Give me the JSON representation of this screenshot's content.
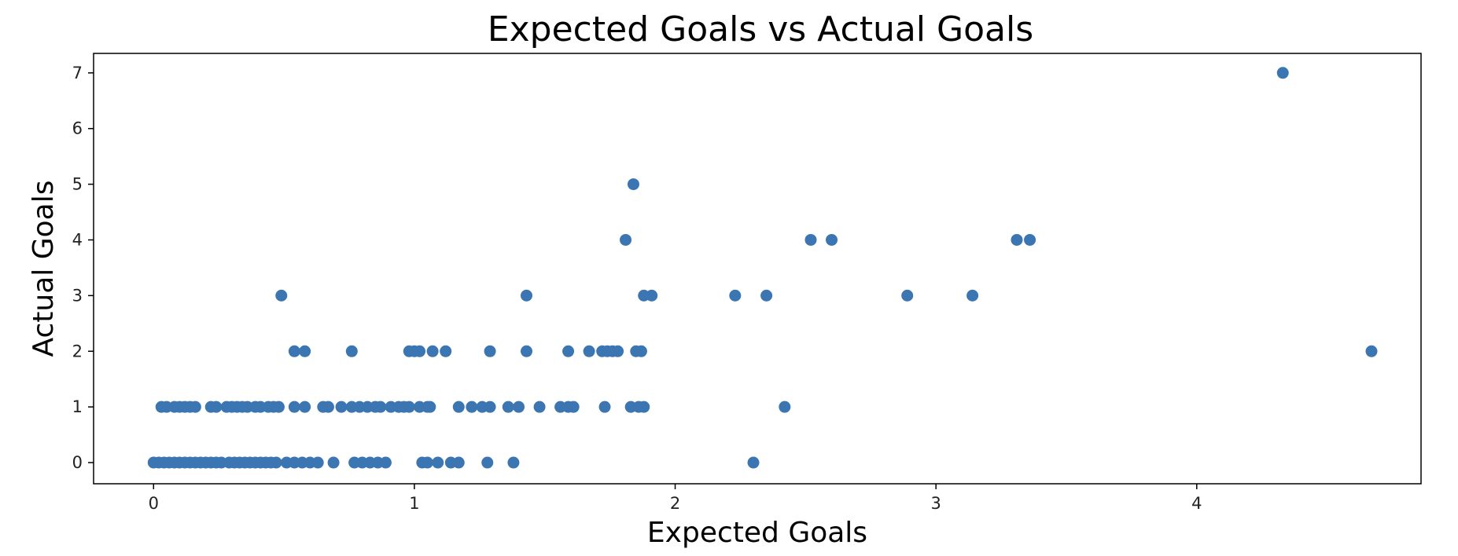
{
  "chart_data": {
    "type": "scatter",
    "title": "Expected Goals vs Actual Goals",
    "xlabel": "Expected Goals",
    "ylabel": "Actual Goals",
    "xlim": [
      -0.23,
      4.86
    ],
    "ylim": [
      -0.38,
      7.35
    ],
    "xticks": [
      0,
      1,
      2,
      3,
      4
    ],
    "yticks": [
      0,
      1,
      2,
      3,
      4,
      5,
      6,
      7
    ],
    "grid": false,
    "marker_color": "#3b76b3",
    "points": [
      [
        4.33,
        7
      ],
      [
        1.84,
        5
      ],
      [
        1.81,
        4
      ],
      [
        2.52,
        4
      ],
      [
        2.6,
        4
      ],
      [
        3.31,
        4
      ],
      [
        3.36,
        4
      ],
      [
        0.49,
        3
      ],
      [
        1.43,
        3
      ],
      [
        1.88,
        3
      ],
      [
        1.91,
        3
      ],
      [
        2.23,
        3
      ],
      [
        2.35,
        3
      ],
      [
        2.89,
        3
      ],
      [
        3.14,
        3
      ],
      [
        0.54,
        2
      ],
      [
        0.58,
        2
      ],
      [
        0.76,
        2
      ],
      [
        0.98,
        2
      ],
      [
        1.0,
        2
      ],
      [
        1.02,
        2
      ],
      [
        1.07,
        2
      ],
      [
        1.12,
        2
      ],
      [
        1.29,
        2
      ],
      [
        1.43,
        2
      ],
      [
        1.59,
        2
      ],
      [
        1.67,
        2
      ],
      [
        1.72,
        2
      ],
      [
        1.74,
        2
      ],
      [
        1.76,
        2
      ],
      [
        1.78,
        2
      ],
      [
        1.85,
        2
      ],
      [
        1.87,
        2
      ],
      [
        4.67,
        2
      ],
      [
        0.03,
        1
      ],
      [
        0.05,
        1
      ],
      [
        0.08,
        1
      ],
      [
        0.1,
        1
      ],
      [
        0.12,
        1
      ],
      [
        0.14,
        1
      ],
      [
        0.16,
        1
      ],
      [
        0.22,
        1
      ],
      [
        0.24,
        1
      ],
      [
        0.28,
        1
      ],
      [
        0.3,
        1
      ],
      [
        0.32,
        1
      ],
      [
        0.34,
        1
      ],
      [
        0.36,
        1
      ],
      [
        0.39,
        1
      ],
      [
        0.41,
        1
      ],
      [
        0.44,
        1
      ],
      [
        0.46,
        1
      ],
      [
        0.48,
        1
      ],
      [
        0.54,
        1
      ],
      [
        0.58,
        1
      ],
      [
        0.65,
        1
      ],
      [
        0.67,
        1
      ],
      [
        0.72,
        1
      ],
      [
        0.76,
        1
      ],
      [
        0.79,
        1
      ],
      [
        0.82,
        1
      ],
      [
        0.85,
        1
      ],
      [
        0.87,
        1
      ],
      [
        0.91,
        1
      ],
      [
        0.94,
        1
      ],
      [
        0.96,
        1
      ],
      [
        0.98,
        1
      ],
      [
        1.02,
        1
      ],
      [
        1.05,
        1
      ],
      [
        1.06,
        1
      ],
      [
        1.17,
        1
      ],
      [
        1.22,
        1
      ],
      [
        1.26,
        1
      ],
      [
        1.29,
        1
      ],
      [
        1.36,
        1
      ],
      [
        1.4,
        1
      ],
      [
        1.48,
        1
      ],
      [
        1.56,
        1
      ],
      [
        1.59,
        1
      ],
      [
        1.61,
        1
      ],
      [
        1.73,
        1
      ],
      [
        1.83,
        1
      ],
      [
        1.86,
        1
      ],
      [
        1.88,
        1
      ],
      [
        2.42,
        1
      ],
      [
        0.0,
        0
      ],
      [
        0.02,
        0
      ],
      [
        0.04,
        0
      ],
      [
        0.06,
        0
      ],
      [
        0.08,
        0
      ],
      [
        0.1,
        0
      ],
      [
        0.12,
        0
      ],
      [
        0.14,
        0
      ],
      [
        0.16,
        0
      ],
      [
        0.18,
        0
      ],
      [
        0.2,
        0
      ],
      [
        0.22,
        0
      ],
      [
        0.24,
        0
      ],
      [
        0.26,
        0
      ],
      [
        0.29,
        0
      ],
      [
        0.31,
        0
      ],
      [
        0.33,
        0
      ],
      [
        0.35,
        0
      ],
      [
        0.37,
        0
      ],
      [
        0.39,
        0
      ],
      [
        0.41,
        0
      ],
      [
        0.43,
        0
      ],
      [
        0.45,
        0
      ],
      [
        0.47,
        0
      ],
      [
        0.51,
        0
      ],
      [
        0.54,
        0
      ],
      [
        0.57,
        0
      ],
      [
        0.6,
        0
      ],
      [
        0.63,
        0
      ],
      [
        0.69,
        0
      ],
      [
        0.77,
        0
      ],
      [
        0.8,
        0
      ],
      [
        0.83,
        0
      ],
      [
        0.86,
        0
      ],
      [
        0.89,
        0
      ],
      [
        1.03,
        0
      ],
      [
        1.05,
        0
      ],
      [
        1.09,
        0
      ],
      [
        1.14,
        0
      ],
      [
        1.17,
        0
      ],
      [
        1.28,
        0
      ],
      [
        1.38,
        0
      ],
      [
        2.3,
        0
      ]
    ]
  }
}
